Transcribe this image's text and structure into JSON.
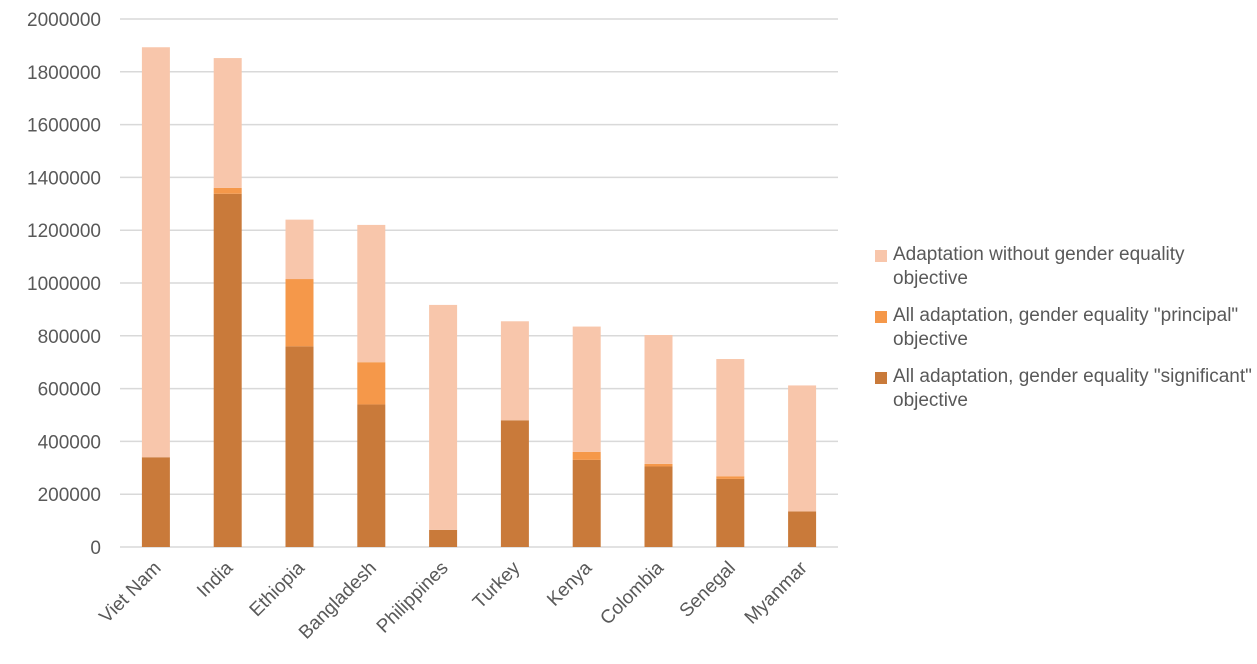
{
  "chart_data": {
    "type": "bar",
    "stacked": true,
    "categories": [
      "Viet Nam",
      "India",
      "Ethiopia",
      "Bangladesh",
      "Philippines",
      "Turkey",
      "Kenya",
      "Colombia",
      "Senegal",
      "Myanmar"
    ],
    "series": [
      {
        "name": "All adaptation, gender equality \"significant\" objective",
        "color": "#c97a3a",
        "values": [
          340000,
          1338000,
          760000,
          540000,
          65000,
          480000,
          330000,
          305000,
          258000,
          135000
        ]
      },
      {
        "name": "All adaptation, gender equality \"principal\" objective",
        "color": "#f5984a",
        "values": [
          0,
          22000,
          255000,
          160000,
          0,
          0,
          30000,
          10000,
          10000,
          0
        ]
      },
      {
        "name": "Adaptation without gender equality objective",
        "color": "#f8c6ab",
        "values": [
          1553000,
          492000,
          225000,
          520000,
          852000,
          375000,
          475000,
          488000,
          444000,
          477000
        ]
      }
    ],
    "legend_order": [
      2,
      1,
      0
    ],
    "ylim": [
      0,
      2000000
    ],
    "yticks": [
      0,
      200000,
      400000,
      600000,
      800000,
      1000000,
      1200000,
      1400000,
      1600000,
      1800000,
      2000000
    ],
    "grid": true,
    "legend_position": "right",
    "gridline_color": "#d9d9d9",
    "axis_text_color": "#595959"
  }
}
